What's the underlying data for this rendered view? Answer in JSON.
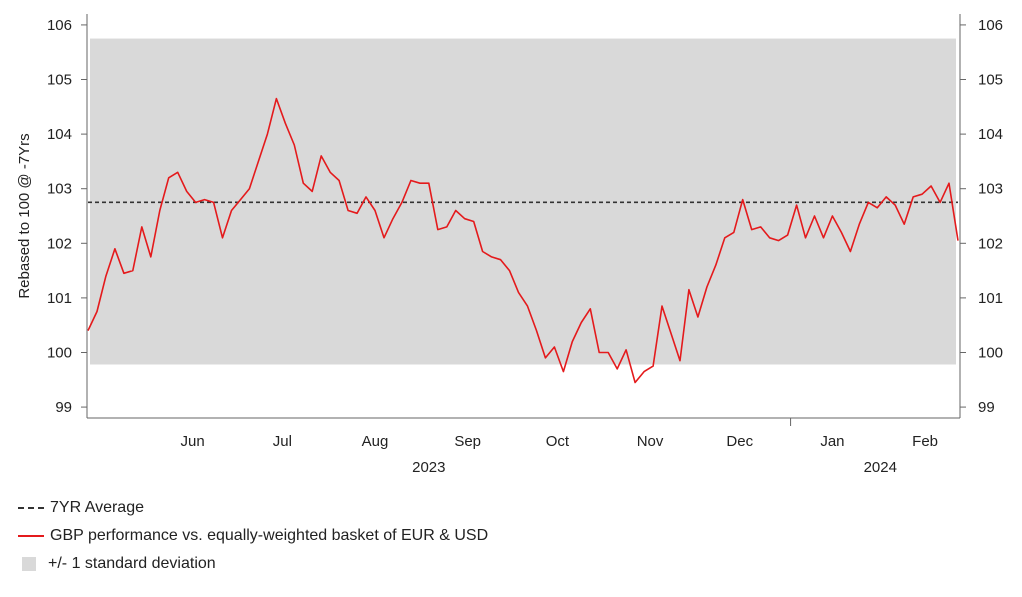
{
  "chart_data": {
    "type": "line",
    "ylabel": "Rebased to 100 @ -7Yrs",
    "ylim": [
      98.8,
      106.2
    ],
    "yticks": [
      99,
      100,
      101,
      102,
      103,
      104,
      105,
      106
    ],
    "x_range": [
      "2023-05-11",
      "2024-02-26"
    ],
    "x_month_labels": [
      {
        "label": "Jun",
        "date": "2023-06-15"
      },
      {
        "label": "Jul",
        "date": "2023-07-15"
      },
      {
        "label": "Aug",
        "date": "2023-08-15"
      },
      {
        "label": "Sep",
        "date": "2023-09-15"
      },
      {
        "label": "Oct",
        "date": "2023-10-15"
      },
      {
        "label": "Nov",
        "date": "2023-11-15"
      },
      {
        "label": "Dec",
        "date": "2023-12-15"
      },
      {
        "label": "Jan",
        "date": "2024-01-15"
      },
      {
        "label": "Feb",
        "date": "2024-02-15"
      }
    ],
    "x_year_labels": [
      {
        "label": "2023",
        "date": "2023-09-02"
      },
      {
        "label": "2024",
        "date": "2024-01-31"
      }
    ],
    "year_separator_date": "2024-01-01",
    "average": 102.75,
    "band": [
      99.78,
      105.75
    ],
    "grid": false,
    "legend_position": "bottom",
    "series": [
      {
        "name": "GBP performance vs. equally-weighted basket of EUR & USD",
        "color": "#e41a1c",
        "points": [
          [
            "2023-05-11",
            100.4
          ],
          [
            "2023-05-14",
            100.75
          ],
          [
            "2023-05-17",
            101.4
          ],
          [
            "2023-05-20",
            101.9
          ],
          [
            "2023-05-23",
            101.45
          ],
          [
            "2023-05-26",
            101.5
          ],
          [
            "2023-05-29",
            102.3
          ],
          [
            "2023-06-01",
            101.75
          ],
          [
            "2023-06-04",
            102.6
          ],
          [
            "2023-06-07",
            103.2
          ],
          [
            "2023-06-10",
            103.3
          ],
          [
            "2023-06-13",
            102.95
          ],
          [
            "2023-06-16",
            102.75
          ],
          [
            "2023-06-19",
            102.8
          ],
          [
            "2023-06-22",
            102.75
          ],
          [
            "2023-06-25",
            102.1
          ],
          [
            "2023-06-28",
            102.6
          ],
          [
            "2023-07-01",
            102.8
          ],
          [
            "2023-07-04",
            103.0
          ],
          [
            "2023-07-07",
            103.5
          ],
          [
            "2023-07-10",
            104.0
          ],
          [
            "2023-07-13",
            104.65
          ],
          [
            "2023-07-16",
            104.2
          ],
          [
            "2023-07-19",
            103.8
          ],
          [
            "2023-07-22",
            103.1
          ],
          [
            "2023-07-25",
            102.95
          ],
          [
            "2023-07-28",
            103.6
          ],
          [
            "2023-07-31",
            103.3
          ],
          [
            "2023-08-03",
            103.15
          ],
          [
            "2023-08-06",
            102.6
          ],
          [
            "2023-08-09",
            102.55
          ],
          [
            "2023-08-12",
            102.85
          ],
          [
            "2023-08-15",
            102.6
          ],
          [
            "2023-08-18",
            102.1
          ],
          [
            "2023-08-21",
            102.45
          ],
          [
            "2023-08-24",
            102.75
          ],
          [
            "2023-08-27",
            103.15
          ],
          [
            "2023-08-30",
            103.1
          ],
          [
            "2023-09-02",
            103.1
          ],
          [
            "2023-09-05",
            102.25
          ],
          [
            "2023-09-08",
            102.3
          ],
          [
            "2023-09-11",
            102.6
          ],
          [
            "2023-09-14",
            102.45
          ],
          [
            "2023-09-17",
            102.4
          ],
          [
            "2023-09-20",
            101.85
          ],
          [
            "2023-09-23",
            101.75
          ],
          [
            "2023-09-26",
            101.7
          ],
          [
            "2023-09-29",
            101.5
          ],
          [
            "2023-10-02",
            101.1
          ],
          [
            "2023-10-05",
            100.85
          ],
          [
            "2023-10-08",
            100.4
          ],
          [
            "2023-10-11",
            99.9
          ],
          [
            "2023-10-14",
            100.1
          ],
          [
            "2023-10-17",
            99.65
          ],
          [
            "2023-10-20",
            100.2
          ],
          [
            "2023-10-23",
            100.55
          ],
          [
            "2023-10-26",
            100.8
          ],
          [
            "2023-10-29",
            100.0
          ],
          [
            "2023-11-01",
            100.0
          ],
          [
            "2023-11-04",
            99.7
          ],
          [
            "2023-11-07",
            100.05
          ],
          [
            "2023-11-10",
            99.45
          ],
          [
            "2023-11-13",
            99.65
          ],
          [
            "2023-11-16",
            99.75
          ],
          [
            "2023-11-19",
            100.85
          ],
          [
            "2023-11-22",
            100.35
          ],
          [
            "2023-11-25",
            99.85
          ],
          [
            "2023-11-28",
            101.15
          ],
          [
            "2023-12-01",
            100.65
          ],
          [
            "2023-12-04",
            101.2
          ],
          [
            "2023-12-07",
            101.6
          ],
          [
            "2023-12-10",
            102.1
          ],
          [
            "2023-12-13",
            102.2
          ],
          [
            "2023-12-16",
            102.8
          ],
          [
            "2023-12-19",
            102.25
          ],
          [
            "2023-12-22",
            102.3
          ],
          [
            "2023-12-25",
            102.1
          ],
          [
            "2023-12-28",
            102.05
          ],
          [
            "2023-12-31",
            102.15
          ],
          [
            "2024-01-03",
            102.7
          ],
          [
            "2024-01-06",
            102.1
          ],
          [
            "2024-01-09",
            102.5
          ],
          [
            "2024-01-12",
            102.1
          ],
          [
            "2024-01-15",
            102.5
          ],
          [
            "2024-01-18",
            102.2
          ],
          [
            "2024-01-21",
            101.85
          ],
          [
            "2024-01-24",
            102.35
          ],
          [
            "2024-01-27",
            102.75
          ],
          [
            "2024-01-30",
            102.65
          ],
          [
            "2024-02-02",
            102.85
          ],
          [
            "2024-02-05",
            102.7
          ],
          [
            "2024-02-08",
            102.35
          ],
          [
            "2024-02-11",
            102.85
          ],
          [
            "2024-02-14",
            102.9
          ],
          [
            "2024-02-17",
            103.05
          ],
          [
            "2024-02-20",
            102.75
          ],
          [
            "2024-02-23",
            103.1
          ],
          [
            "2024-02-26",
            102.05
          ]
        ]
      }
    ]
  },
  "legend": {
    "average_label": "7YR Average",
    "series_label": "GBP performance vs. equally-weighted basket of EUR & USD",
    "band_label": "+/- 1 standard deviation"
  }
}
